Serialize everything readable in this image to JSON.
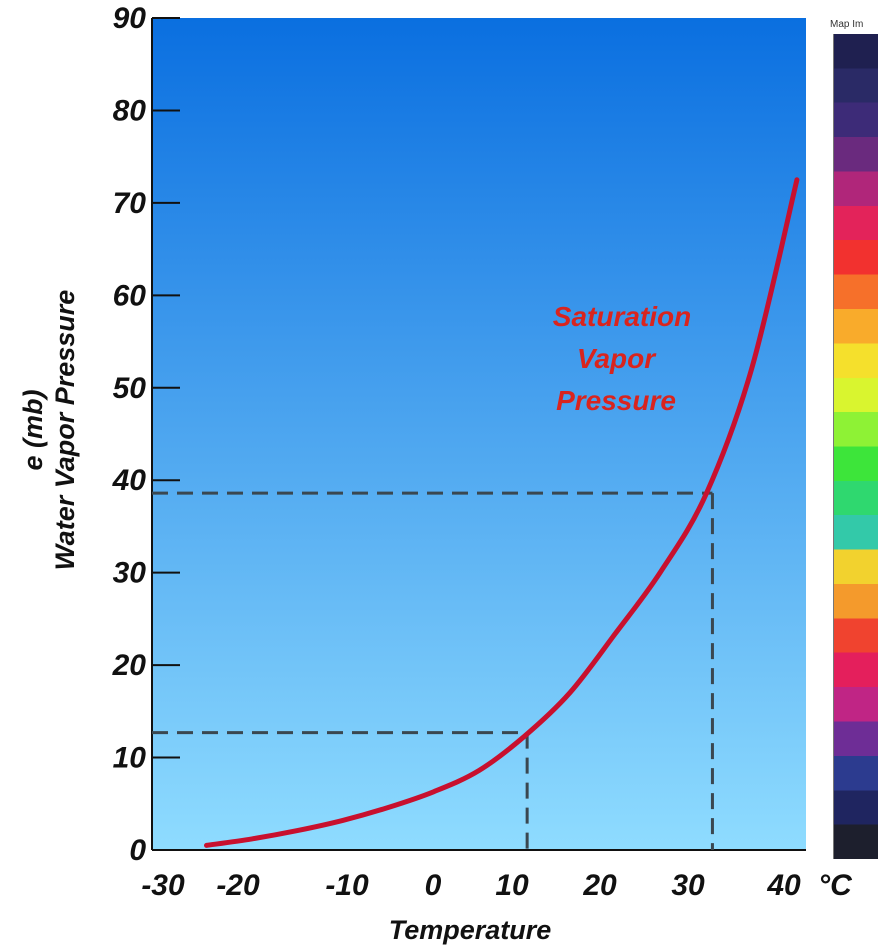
{
  "chart_data": {
    "type": "line",
    "title": "",
    "xlabel": "Temperature",
    "ylabel": "Water Vapor Pressure",
    "ylabel_units": "e (mb)",
    "xlim": [
      -31,
      41
    ],
    "ylim": [
      0,
      90
    ],
    "x_ticks": [
      "-30",
      "-20",
      "-10",
      "0",
      "10",
      "20",
      "30",
      "40"
    ],
    "y_ticks": [
      "0",
      "10",
      "20",
      "30",
      "40",
      "50",
      "60",
      "70",
      "80",
      "90"
    ],
    "x_unit": "°C",
    "series": [
      {
        "name": "Saturation Vapor Pressure",
        "color": "#c8102e",
        "x": [
          -25,
          -20,
          -15,
          -10,
          -5,
          0,
          5,
          10,
          15,
          20,
          25,
          30,
          35,
          40
        ],
        "y": [
          0.5,
          1.2,
          2.1,
          3.2,
          4.6,
          6.3,
          8.6,
          12.3,
          17.0,
          23.4,
          30.1,
          38.5,
          52.0,
          72.5
        ]
      }
    ],
    "annotations": [
      {
        "type": "guide",
        "x": 10.3,
        "y": 12.7
      },
      {
        "type": "guide",
        "x": 30.7,
        "y": 38.6
      }
    ],
    "grid": false,
    "legend": "none",
    "background_gradient": [
      "#0a6fe0",
      "#8fdcff"
    ]
  },
  "curve_label_lines": [
    "Saturation",
    "Vapor",
    "Pressure"
  ],
  "side_panel": {
    "label": "Map Im",
    "colorbar": [
      "#1f2050",
      "#2a2a66",
      "#3d2b78",
      "#6a2a7e",
      "#b0267a",
      "#e3235a",
      "#f2312f",
      "#f6702a",
      "#f9ab2b",
      "#f5e02c",
      "#d9f52f",
      "#8ef235",
      "#3de53a",
      "#2fd86f",
      "#33c9a9",
      "#f2d22e",
      "#f49a2c",
      "#f0432f",
      "#e41f5c",
      "#c02585",
      "#6e2d96",
      "#2c3b8f",
      "#1f2560",
      "#1d1f2d"
    ]
  }
}
